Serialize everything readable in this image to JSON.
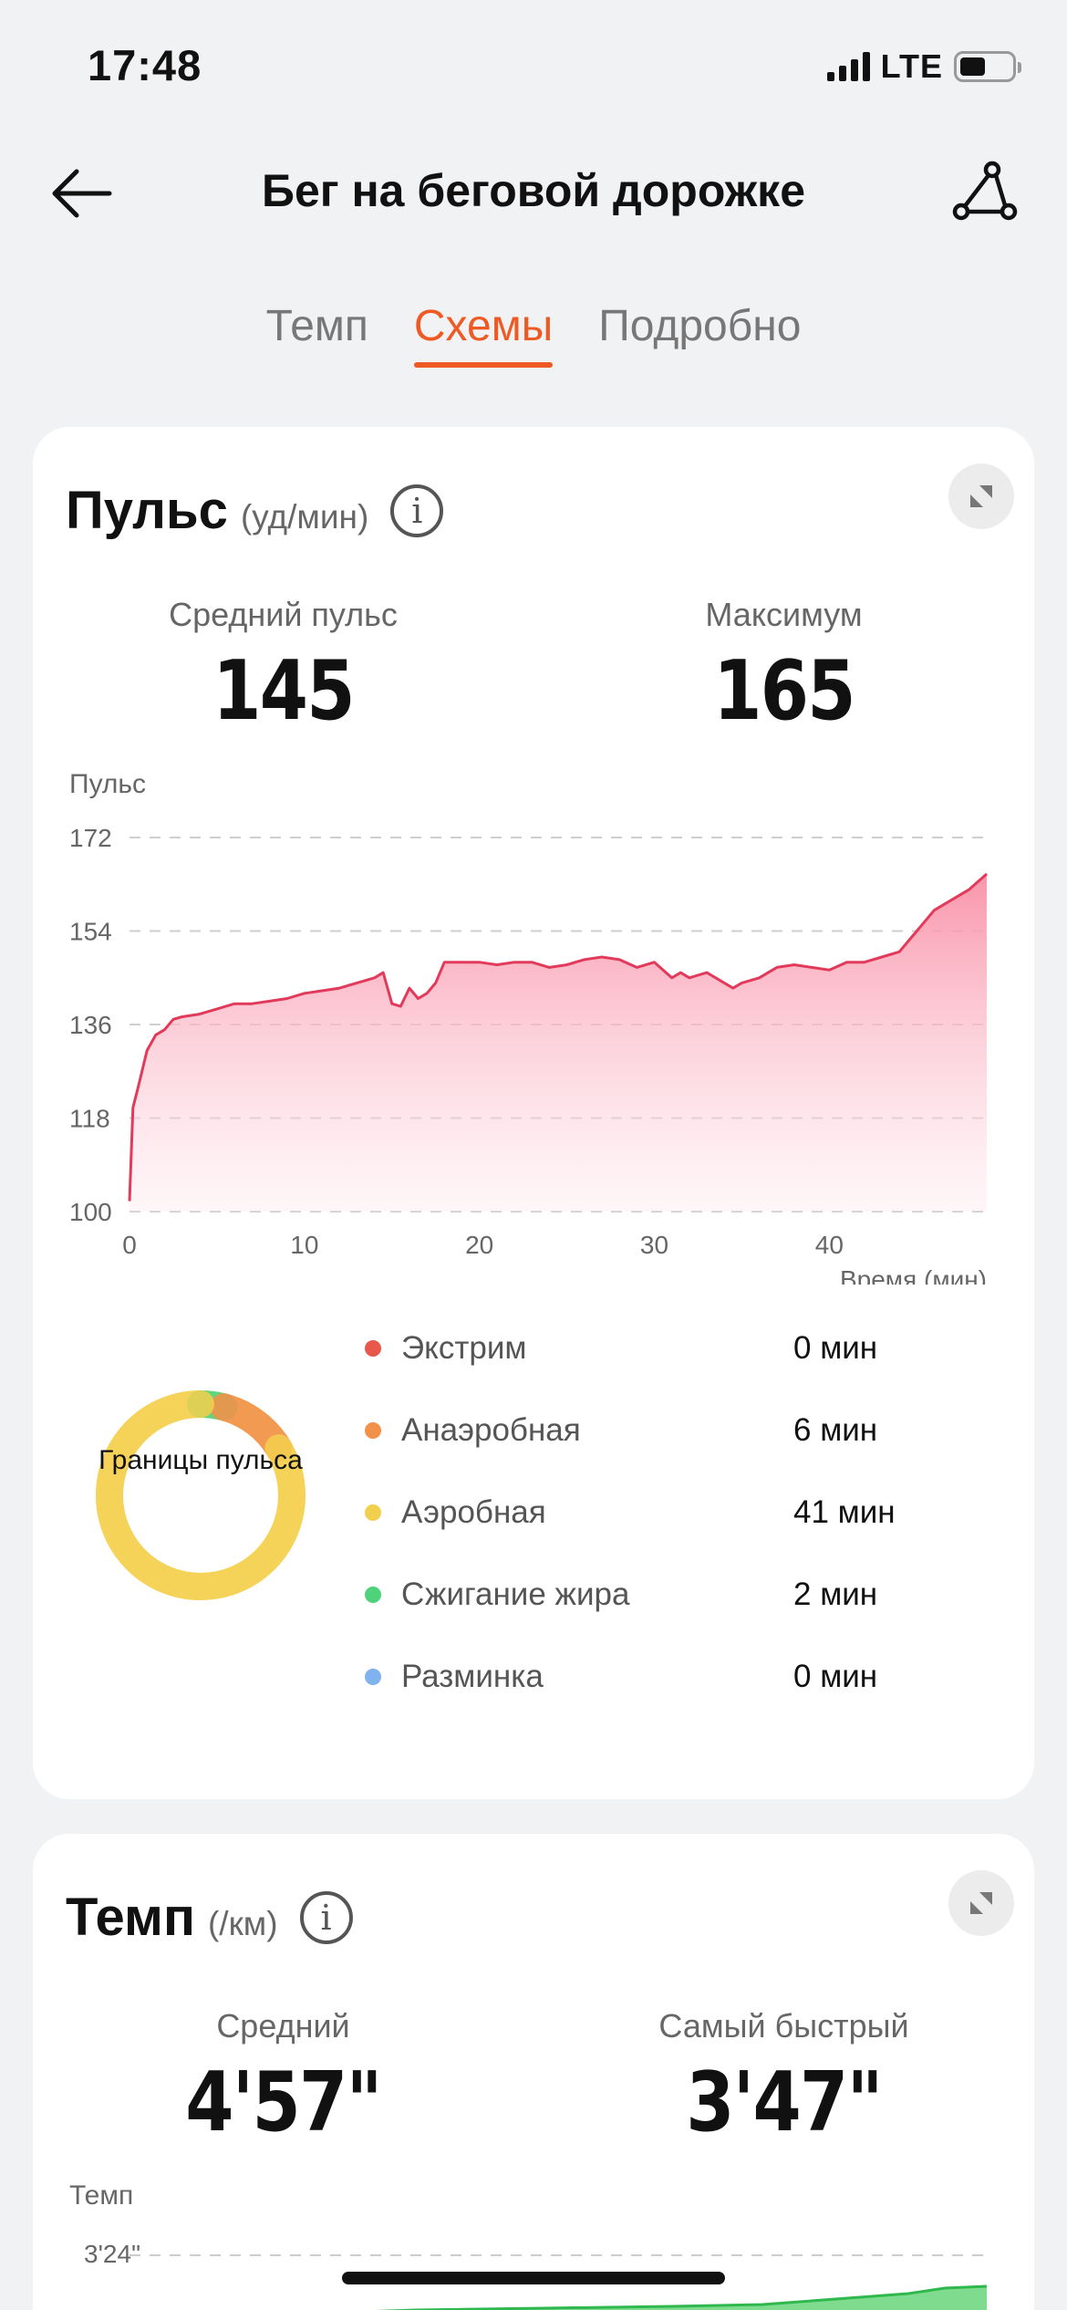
{
  "status": {
    "time": "17:48",
    "network": "LTE"
  },
  "nav": {
    "title": "Бег на беговой дорожке",
    "back_icon": "arrow-left-icon",
    "route_icon": "route-share-icon"
  },
  "tabs": [
    {
      "label": "Темп",
      "active": false
    },
    {
      "label": "Схемы",
      "active": true
    },
    {
      "label": "Подробно",
      "active": false
    }
  ],
  "heart_rate": {
    "title": "Пульс",
    "unit": "(уд/мин)",
    "avg_label": "Средний пульс",
    "avg_value": "145",
    "max_label": "Максимум",
    "max_value": "165",
    "axis_name": "Пульс",
    "zones_center_label": "Границы пульса",
    "zones": [
      {
        "name": "Экстрим",
        "value": "0 мин",
        "color": "#e8584a"
      },
      {
        "name": "Анаэробная",
        "value": "6 мин",
        "color": "#f2914a"
      },
      {
        "name": "Аэробная",
        "value": "41 мин",
        "color": "#f3cf4e"
      },
      {
        "name": "Сжигание жира",
        "value": "2 мин",
        "color": "#4fd37a"
      },
      {
        "name": "Разминка",
        "value": "0 мин",
        "color": "#7fb2ee"
      }
    ]
  },
  "pace": {
    "title": "Темп",
    "unit": "(/км)",
    "avg_label": "Средний",
    "avg_value": "4'57\"",
    "fast_label": "Самый быстрый",
    "fast_value": "3'47\"",
    "axis_name": "Темп",
    "top_tick": "3'24\""
  },
  "chart_data": [
    {
      "type": "area",
      "title": "Пульс",
      "ylabel": "Пульс",
      "xlabel": "Время (мин)",
      "ylim": [
        100,
        172
      ],
      "xlim": [
        0,
        49
      ],
      "yticks": [
        100,
        118,
        136,
        154,
        172
      ],
      "xticks": [
        0,
        10,
        20,
        30,
        40
      ],
      "grid": true,
      "color": "#e23a5a",
      "series": [
        {
          "x": [
            0,
            0.2,
            0.5,
            1,
            1.5,
            2,
            2.5,
            3,
            4,
            5,
            6,
            7,
            8,
            9,
            10,
            11,
            12,
            13,
            14,
            14.5,
            15,
            15.5,
            16,
            16.5,
            17,
            17.5,
            18,
            19,
            20,
            21,
            22,
            23,
            24,
            25,
            26,
            27,
            28,
            29,
            30,
            31,
            31.5,
            32,
            33,
            34,
            34.5,
            35,
            36,
            37,
            38,
            39,
            40,
            41,
            42,
            43,
            44,
            45,
            46,
            47,
            48,
            49
          ],
          "y": [
            102,
            120,
            124,
            131,
            134,
            135,
            137,
            137.5,
            138,
            139,
            140,
            140,
            140.5,
            141,
            142,
            142.5,
            143,
            144,
            145,
            146,
            140,
            139.5,
            143,
            141,
            142,
            144,
            148,
            148,
            148,
            147.5,
            148,
            148,
            147,
            147.5,
            148.5,
            149,
            148.5,
            147,
            148,
            145,
            146,
            145,
            146,
            144,
            143,
            144,
            145,
            147,
            147.5,
            147,
            146.5,
            148,
            148,
            149,
            150,
            154,
            158,
            160,
            162,
            165
          ]
        }
      ]
    }
  ]
}
